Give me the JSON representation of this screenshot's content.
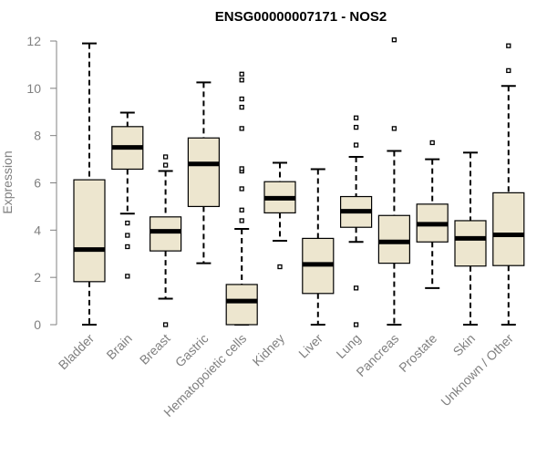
{
  "chart_data": {
    "type": "box",
    "title": "ENSG00000007171 - NOS2",
    "xlabel": "",
    "ylabel": "Expression",
    "ylim": [
      0,
      12
    ],
    "yticks": [
      0,
      2,
      4,
      6,
      8,
      10,
      12
    ],
    "grid": false,
    "legend": "none",
    "colors": {
      "box_fill": "#ede6cf",
      "outline": "#000000",
      "axis_text": "#808080"
    },
    "categories": [
      "Bladder",
      "Brain",
      "Breast",
      "Gastric",
      "Hematopoietic cells",
      "Kidney",
      "Liver",
      "Lung",
      "Pancreas",
      "Prostate",
      "Skin",
      "Unknown / Other"
    ],
    "boxes": [
      {
        "whisker_low": 0.0,
        "q1": 1.82,
        "median": 3.18,
        "q3": 6.13,
        "whisker_high": 11.9,
        "outliers": []
      },
      {
        "whisker_low": 4.7,
        "q1": 6.58,
        "median": 7.5,
        "q3": 8.38,
        "whisker_high": 8.97,
        "outliers": [
          2.05,
          3.3,
          3.78,
          4.3
        ]
      },
      {
        "whisker_low": 1.1,
        "q1": 3.12,
        "median": 3.95,
        "q3": 4.56,
        "whisker_high": 6.5,
        "outliers": [
          0.0,
          6.75,
          7.1
        ]
      },
      {
        "whisker_low": 2.6,
        "q1": 5.0,
        "median": 6.8,
        "q3": 7.9,
        "whisker_high": 10.25,
        "outliers": []
      },
      {
        "whisker_low": 0.0,
        "q1": 0.0,
        "median": 1.0,
        "q3": 1.7,
        "whisker_high": 4.05,
        "outliers": [
          4.4,
          4.85,
          5.75,
          6.5,
          6.6,
          8.3,
          9.2,
          9.55,
          10.35,
          10.6
        ]
      },
      {
        "whisker_low": 3.55,
        "q1": 4.73,
        "median": 5.35,
        "q3": 6.05,
        "whisker_high": 6.85,
        "outliers": [
          2.45
        ]
      },
      {
        "whisker_low": 0.0,
        "q1": 1.32,
        "median": 2.55,
        "q3": 3.65,
        "whisker_high": 6.58,
        "outliers": []
      },
      {
        "whisker_low": 3.5,
        "q1": 4.12,
        "median": 4.8,
        "q3": 5.42,
        "whisker_high": 7.1,
        "outliers": [
          0.0,
          1.55,
          7.6,
          8.35,
          8.75
        ]
      },
      {
        "whisker_low": 0.0,
        "q1": 2.6,
        "median": 3.5,
        "q3": 4.62,
        "whisker_high": 7.35,
        "outliers": [
          8.3,
          12.05
        ]
      },
      {
        "whisker_low": 1.55,
        "q1": 3.5,
        "median": 4.25,
        "q3": 5.1,
        "whisker_high": 7.0,
        "outliers": [
          7.7
        ]
      },
      {
        "whisker_low": 0.0,
        "q1": 2.48,
        "median": 3.65,
        "q3": 4.4,
        "whisker_high": 7.28,
        "outliers": []
      },
      {
        "whisker_low": 0.0,
        "q1": 2.5,
        "median": 3.8,
        "q3": 5.58,
        "whisker_high": 10.1,
        "outliers": [
          10.75,
          11.8
        ]
      }
    ]
  }
}
